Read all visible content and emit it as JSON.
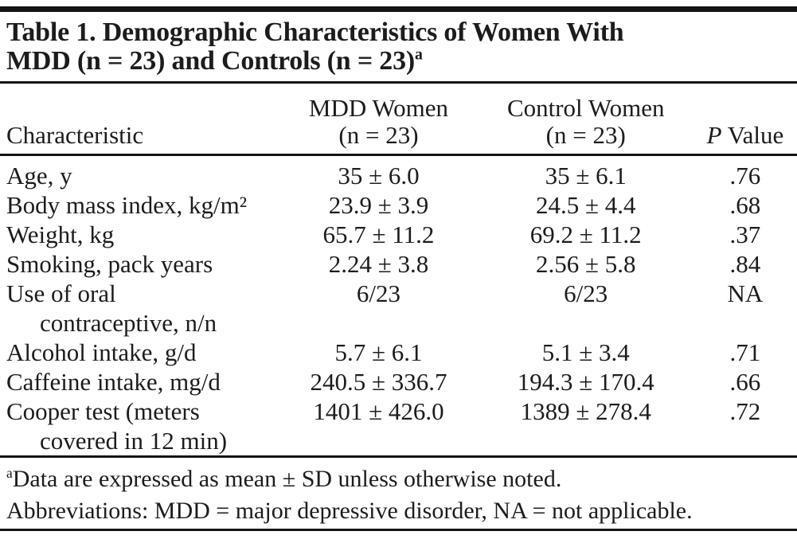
{
  "page": {
    "background_color": "#ffffff",
    "text_color": "#1c1c1c",
    "rule_color": "#141414"
  },
  "table": {
    "title": {
      "lines": [
        "Table 1. Demographic Characteristics of Women With",
        "MDD (n = 23) and Controls (n = 23)"
      ],
      "superscript": "a"
    },
    "columns": [
      {
        "lines": [
          "Characteristic"
        ]
      },
      {
        "lines": [
          "MDD Women",
          "(n = 23)"
        ]
      },
      {
        "lines": [
          "Control Women",
          "(n = 23)"
        ]
      },
      {
        "lines": [
          "P Value"
        ]
      }
    ],
    "rows": [
      {
        "label_lines": [
          "Age, y"
        ],
        "mdd": "35 ± 6.0",
        "control": "35 ± 6.1",
        "p_value": ".76"
      },
      {
        "label_lines": [
          "Body mass index, kg/m²"
        ],
        "mdd": "23.9 ± 3.9",
        "control": "24.5 ± 4.4",
        "p_value": ".68"
      },
      {
        "label_lines": [
          "Weight, kg"
        ],
        "mdd": "65.7 ± 11.2",
        "control": "69.2 ± 11.2",
        "p_value": ".37"
      },
      {
        "label_lines": [
          "Smoking, pack years"
        ],
        "mdd": "2.24 ± 3.8",
        "control": "2.56 ± 5.8",
        "p_value": ".84"
      },
      {
        "label_lines": [
          "Use of oral",
          "contraceptive, n/n"
        ],
        "mdd": "6/23",
        "control": "6/23",
        "p_value": "NA"
      },
      {
        "label_lines": [
          "Alcohol intake, g/d"
        ],
        "mdd": "5.7 ± 6.1",
        "control": "5.1 ± 3.4",
        "p_value": ".71"
      },
      {
        "label_lines": [
          "Caffeine intake, mg/d"
        ],
        "mdd": "240.5 ± 336.7",
        "control": "194.3 ± 170.4",
        "p_value": ".66"
      },
      {
        "label_lines": [
          "Cooper test (meters",
          "covered in 12 min)"
        ],
        "mdd": "1401 ± 426.0",
        "control": "1389 ± 278.4",
        "p_value": ".72"
      }
    ],
    "footnotes": [
      {
        "superscript": "a",
        "text": "Data are expressed as mean ± SD unless otherwise noted."
      },
      {
        "text": "Abbreviations: MDD = major depressive disorder, NA = not applicable."
      }
    ]
  }
}
